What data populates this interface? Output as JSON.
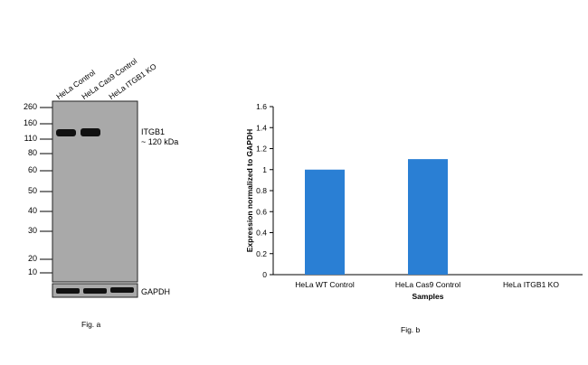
{
  "figure_a": {
    "caption": "Fig. a",
    "lanes": [
      "HeLa Control",
      "HeLa Cas9 Control",
      "HeLa ITGB1 KO"
    ],
    "mw_markers": [
      "260",
      "160",
      "110",
      "80",
      "60",
      "50",
      "40",
      "30",
      "20",
      "10"
    ],
    "target_label": "ITGB1",
    "target_size": "~ 120 kDa",
    "loading_label": "GAPDH",
    "colors": {
      "membrane": "#a9a9a9",
      "band": "#111111"
    }
  },
  "figure_b": {
    "caption": "Fig. b"
  },
  "chart_data": {
    "type": "bar",
    "categories": [
      "HeLa WT Control",
      "HeLa Cas9 Control",
      "HeLa ITGB1 KO"
    ],
    "values": [
      1.0,
      1.1,
      0.0
    ],
    "title": "",
    "xlabel": "Samples",
    "ylabel": "Expression normalized to GAPDH",
    "ylim": [
      0,
      1.6
    ],
    "yticks": [
      0,
      0.2,
      0.4,
      0.6,
      0.8,
      1,
      1.2,
      1.4,
      1.6
    ],
    "ytick_labels": [
      "0",
      "0.2",
      "0.4",
      "0.6",
      "0.8",
      "1",
      "1.2",
      "1.4",
      "1.6"
    ],
    "grid": false,
    "legend": "none",
    "bar_color": "#2a7fd4"
  }
}
